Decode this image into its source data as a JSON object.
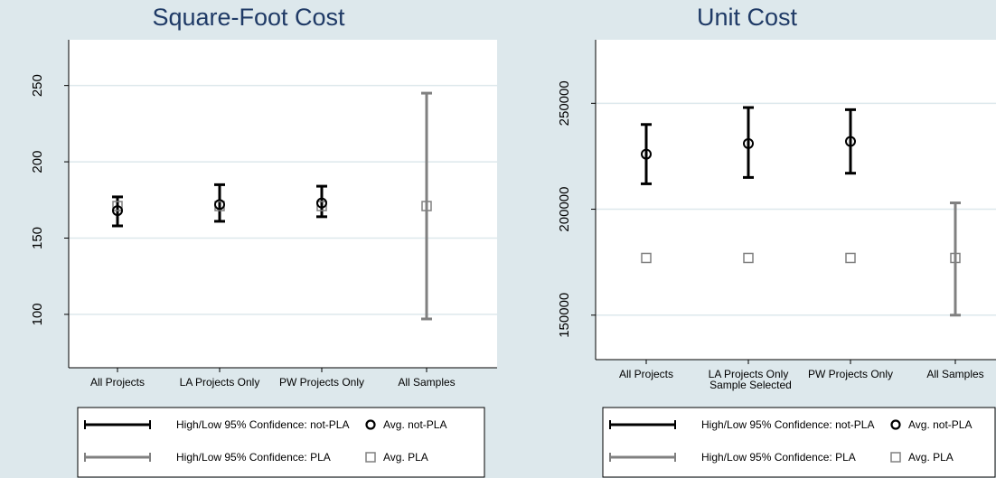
{
  "chart_data": [
    {
      "type": "errorbar",
      "title": "Square-Foot Cost",
      "xlabel": "",
      "ylabel": "",
      "categories": [
        "All Projects",
        "LA  Projects Only",
        "PW  Projects Only",
        "All Samples"
      ],
      "yticks": [
        100,
        150,
        200,
        250
      ],
      "ylim": [
        65,
        280
      ],
      "grid": true,
      "series": [
        {
          "name": "Avg. not-PLA",
          "marker": "circle",
          "color": "#000000",
          "values": [
            168,
            172,
            173,
            null
          ]
        },
        {
          "name": "High/Low 95% Confidence: not-PLA",
          "color": "#000000",
          "high": [
            177,
            185,
            184,
            null
          ],
          "low": [
            158,
            161,
            164,
            null
          ]
        },
        {
          "name": "Avg. PLA",
          "marker": "square",
          "color": "#808080",
          "values": [
            171,
            171,
            171,
            171
          ]
        },
        {
          "name": "High/Low 95% Confidence: PLA",
          "color": "#808080",
          "high": [
            null,
            null,
            null,
            245
          ],
          "low": [
            null,
            null,
            null,
            97
          ]
        }
      ],
      "legend": [
        {
          "line": "black",
          "label": "High/Low 95% Confidence: not-PLA",
          "marker": "circle",
          "marker_label": "Avg. not-PLA"
        },
        {
          "line": "gray",
          "label": "High/Low 95% Confidence: PLA",
          "marker": "square",
          "marker_label": "Avg. PLA"
        }
      ],
      "legend_position": "bottom"
    },
    {
      "type": "errorbar",
      "title": "Unit Cost",
      "xlabel": "Sample Selected",
      "ylabel": "",
      "categories": [
        "All Projects",
        "LA  Projects Only",
        "PW  Projects Only",
        "All Samples"
      ],
      "yticks": [
        150000,
        200000,
        250000
      ],
      "ylim": [
        129000,
        280000
      ],
      "grid": true,
      "series": [
        {
          "name": "Avg. not-PLA",
          "marker": "circle",
          "color": "#000000",
          "values": [
            226000,
            231000,
            232000,
            null
          ]
        },
        {
          "name": "High/Low 95% Confidence: not-PLA",
          "color": "#000000",
          "high": [
            240000,
            248000,
            247000,
            null
          ],
          "low": [
            212000,
            215000,
            217000,
            null
          ]
        },
        {
          "name": "Avg. PLA",
          "marker": "square",
          "color": "#808080",
          "values": [
            177000,
            177000,
            177000,
            177000
          ]
        },
        {
          "name": "High/Low 95% Confidence: PLA",
          "color": "#808080",
          "high": [
            null,
            null,
            null,
            203000
          ],
          "low": [
            null,
            null,
            null,
            150000
          ]
        }
      ],
      "legend": [
        {
          "line": "black",
          "label": "High/Low 95% Confidence: not-PLA",
          "marker": "circle",
          "marker_label": "Avg. not-PLA"
        },
        {
          "line": "gray",
          "label": "High/Low 95% Confidence: PLA",
          "marker": "square",
          "marker_label": "Avg. PLA"
        }
      ],
      "legend_position": "bottom"
    }
  ]
}
